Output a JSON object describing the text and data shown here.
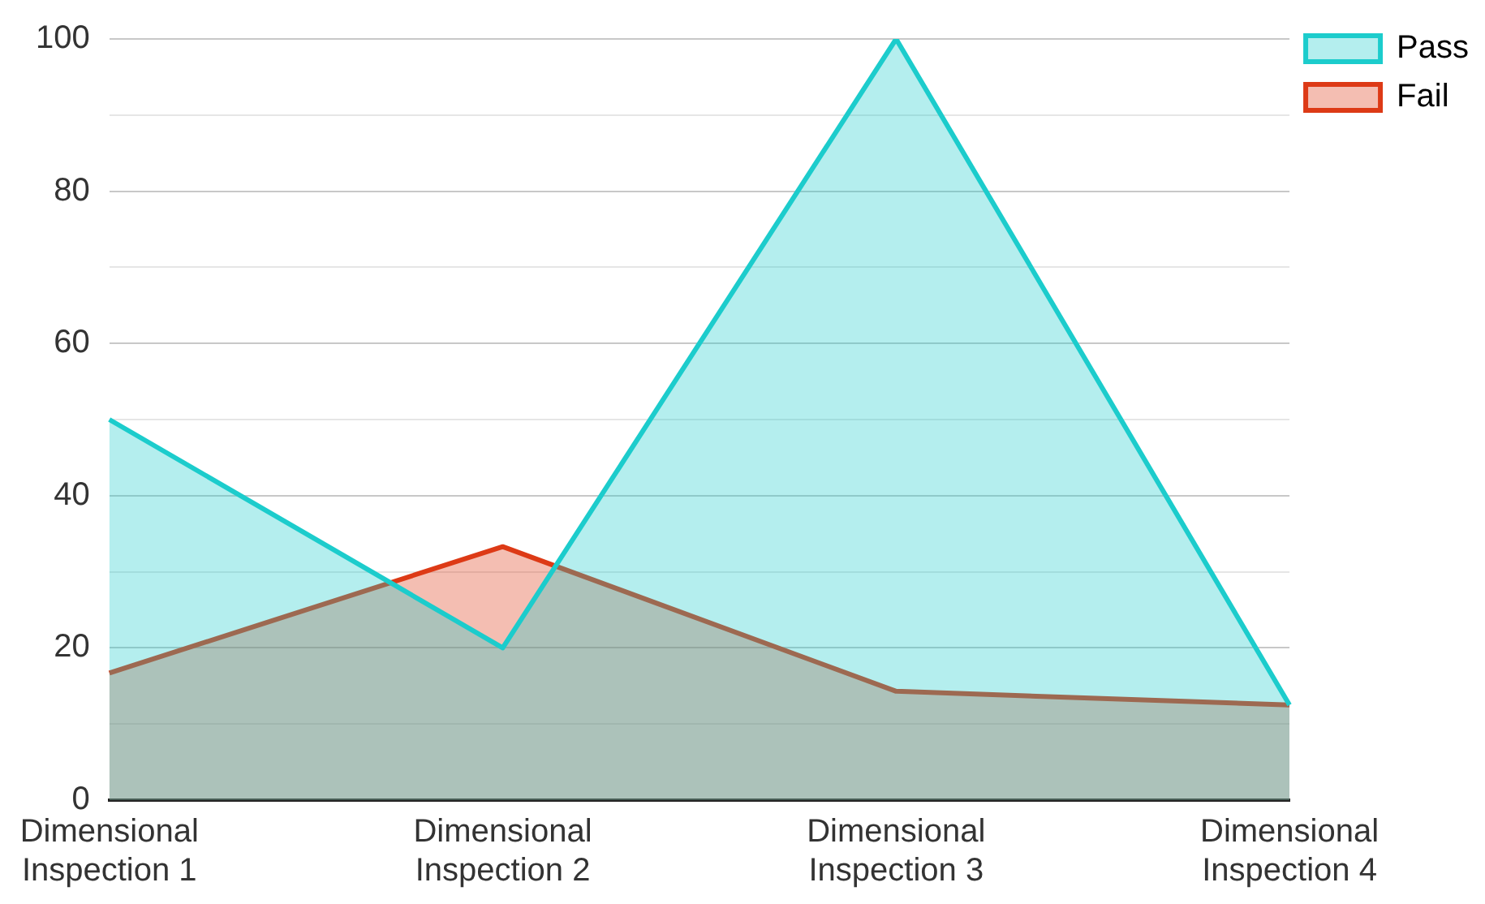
{
  "chart_data": {
    "type": "area",
    "categories": [
      "Dimensional Inspection 1",
      "Dimensional Inspection 2",
      "Dimensional Inspection 3",
      "Dimensional Inspection 4"
    ],
    "series": [
      {
        "name": "Pass",
        "color": "#1ccccc",
        "values": [
          50,
          20,
          100,
          12.5
        ]
      },
      {
        "name": "Fail",
        "color": "#dd3a16",
        "values": [
          16.7,
          33.3,
          14.3,
          12.5
        ]
      }
    ],
    "ylim": [
      0,
      100
    ],
    "yticks": [
      0,
      {
        "value": 10,
        "label": null
      },
      20,
      {
        "value": 30,
        "label": null
      },
      40,
      {
        "value": 50,
        "label": null
      },
      60,
      {
        "value": 70,
        "label": null
      },
      80,
      {
        "value": 90,
        "label": null
      },
      100
    ],
    "grid": "y",
    "legend": "top right",
    "marker": "none"
  }
}
